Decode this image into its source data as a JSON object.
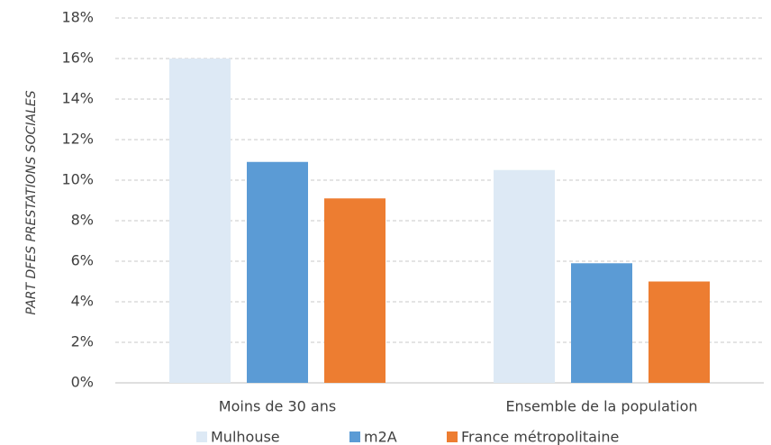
{
  "chart_data": {
    "type": "bar",
    "y_label": "PART DFES PRESTATIONS SOCIALES",
    "categories": [
      "Moins de 30 ans",
      "Ensemble de la population"
    ],
    "series": [
      {
        "name": "Mulhouse",
        "color": "#dde9f5",
        "values": [
          16,
          10.5
        ]
      },
      {
        "name": "m2A",
        "color": "#5b9bd5",
        "values": [
          10.9,
          5.9
        ]
      },
      {
        "name": "France métropolitaine",
        "color": "#ed7d31",
        "values": [
          9.1,
          5.0
        ]
      }
    ],
    "ylim": [
      0,
      18
    ],
    "yticks": [
      {
        "value": 0,
        "label": "0%"
      },
      {
        "value": 2,
        "label": "2%"
      },
      {
        "value": 4,
        "label": "4%"
      },
      {
        "value": 6,
        "label": "6%"
      },
      {
        "value": 8,
        "label": "8%"
      },
      {
        "value": 10,
        "label": "10%"
      },
      {
        "value": 12,
        "label": "12%"
      },
      {
        "value": 14,
        "label": "14%"
      },
      {
        "value": 16,
        "label": "16%"
      },
      {
        "value": 18,
        "label": "18%"
      }
    ],
    "grid": true,
    "legend": "bottom"
  }
}
